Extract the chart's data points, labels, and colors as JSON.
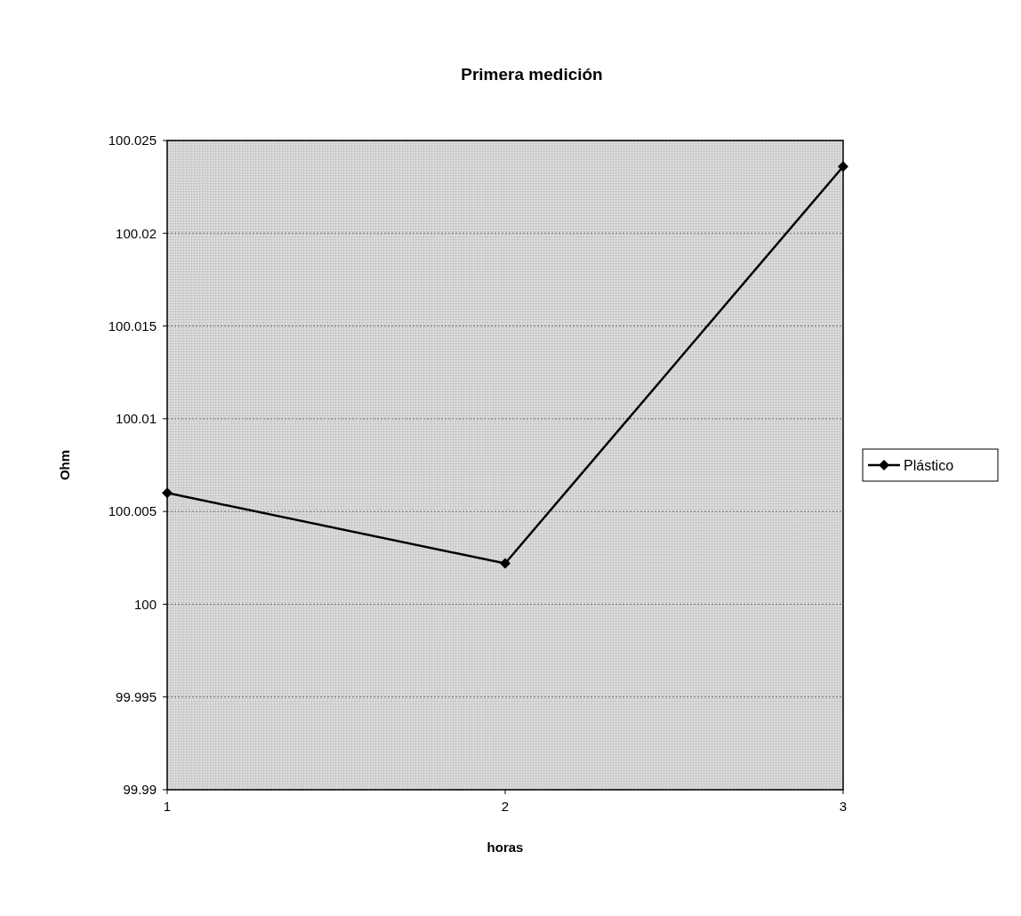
{
  "chart_data": {
    "type": "line",
    "title": "Primera medición",
    "xlabel": "horas",
    "ylabel": "Ohm",
    "categories": [
      "1",
      "2",
      "3"
    ],
    "series": [
      {
        "name": "Plástico",
        "color": "#000000",
        "values": [
          100.006,
          100.0022,
          100.0236
        ]
      }
    ],
    "ylim": [
      99.99,
      100.025
    ],
    "yticks": [
      99.99,
      99.995,
      100,
      100.005,
      100.01,
      100.015,
      100.02,
      100.025
    ],
    "grid": "y",
    "legend": "right",
    "marker": "diamond",
    "line_style": "solid"
  }
}
